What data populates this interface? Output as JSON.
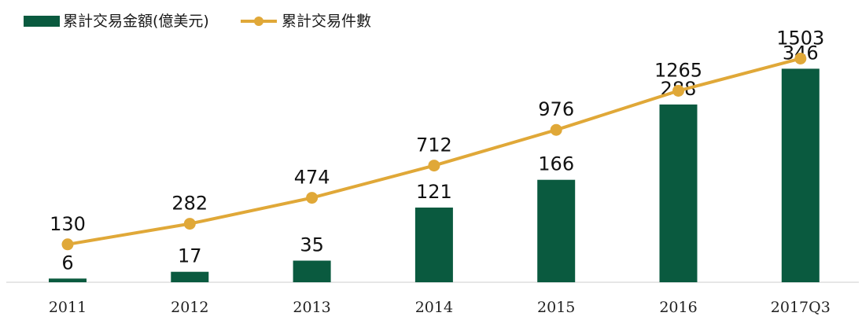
{
  "chart_data": {
    "type": "bar",
    "categories": [
      "2011",
      "2012",
      "2013",
      "2014",
      "2015",
      "2016",
      "2017Q3"
    ],
    "series": [
      {
        "name": "累計交易金額(億美元)",
        "type": "bar",
        "values": [
          6,
          17,
          35,
          121,
          166,
          288,
          346
        ],
        "color": "#0a5a3f"
      },
      {
        "name": "累計交易件數",
        "type": "line",
        "values": [
          130,
          282,
          474,
          712,
          976,
          1265,
          1503
        ],
        "color": "#e0a838"
      }
    ],
    "title": "",
    "xlabel": "",
    "ylabel": "",
    "grid": false,
    "legend_position": "top-left",
    "bar_ylim": [
      0,
      400
    ],
    "line_ylim": [
      -150,
      1600
    ],
    "axis_color": "#cccccc"
  }
}
